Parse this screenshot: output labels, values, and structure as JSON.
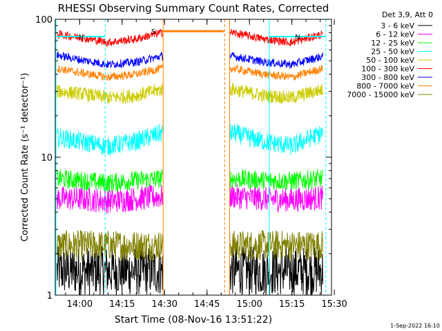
{
  "chart_data": {
    "type": "line",
    "title": "RHESSI Observing Summary Count Rates, Corrected",
    "xlabel": "Start Time (08-Nov-16 13:51:22)",
    "ylabel": "Corrected Count Rate (s⁻¹ detector⁻¹)",
    "y_scale": "log",
    "ylim": [
      1,
      100
    ],
    "xlim": [
      "13:51:22",
      "15:29:00"
    ],
    "x_ticks": [
      "14:00",
      "14:15",
      "14:30",
      "14:45",
      "15:00",
      "15:15",
      "15:30"
    ],
    "y_ticks": [
      "1",
      "10",
      "100"
    ],
    "legend_header": "Det 3,9, Att 0",
    "legend_position": "top-right",
    "data_gap": [
      "14:29:30",
      "14:53:00"
    ],
    "series": [
      {
        "name": "3 - 6 keV",
        "color": "#000000",
        "x": [
          "13:52",
          "14:00",
          "14:10",
          "14:20",
          "14:29",
          "14:54",
          "15:05",
          "15:15",
          "15:26"
        ],
        "values": [
          1.5,
          1.5,
          1.5,
          1.5,
          1.5,
          1.5,
          1.5,
          1.5,
          1.5
        ]
      },
      {
        "name": "6 - 12 keV",
        "color": "#ff00ff",
        "x": [
          "13:52",
          "14:00",
          "14:10",
          "14:20",
          "14:29",
          "14:54",
          "15:05",
          "15:15",
          "15:26"
        ],
        "values": [
          5.0,
          5.0,
          4.8,
          5.0,
          5.2,
          5.2,
          5.0,
          4.9,
          5.1
        ]
      },
      {
        "name": "12 - 25 keV",
        "color": "#00ff00",
        "x": [
          "13:52",
          "14:00",
          "14:10",
          "14:20",
          "14:29",
          "14:54",
          "15:05",
          "15:15",
          "15:26"
        ],
        "values": [
          7.0,
          6.8,
          6.5,
          6.8,
          7.0,
          7.0,
          6.8,
          6.7,
          7.0
        ]
      },
      {
        "name": "25 - 50 keV",
        "color": "#00ffff",
        "x": [
          "13:52",
          "14:00",
          "14:10",
          "14:20",
          "14:29",
          "14:54",
          "15:05",
          "15:15",
          "15:26"
        ],
        "values": [
          14,
          13,
          12,
          13,
          15,
          15,
          13,
          12,
          15
        ]
      },
      {
        "name": "50 - 100 keV",
        "color": "#cccc00",
        "x": [
          "13:52",
          "14:00",
          "14:10",
          "14:20",
          "14:29",
          "14:54",
          "15:05",
          "15:15",
          "15:26"
        ],
        "values": [
          30,
          29,
          27,
          28,
          31,
          31,
          28,
          27,
          31
        ]
      },
      {
        "name": "100 - 300 keV",
        "color": "#ff0000",
        "x": [
          "13:52",
          "14:00",
          "14:10",
          "14:20",
          "14:29",
          "14:54",
          "15:05",
          "15:15",
          "15:26"
        ],
        "values": [
          78,
          74,
          68,
          72,
          80,
          80,
          72,
          68,
          78
        ]
      },
      {
        "name": "300 - 800 keV",
        "color": "#0000ff",
        "x": [
          "13:52",
          "14:00",
          "14:10",
          "14:20",
          "14:29",
          "14:54",
          "15:05",
          "15:15",
          "15:26"
        ],
        "values": [
          55,
          51,
          47,
          49,
          54,
          54,
          49,
          47,
          54
        ]
      },
      {
        "name": "800 - 7000 keV",
        "color": "#ff8000",
        "x": [
          "13:52",
          "14:00",
          "14:10",
          "14:20",
          "14:29",
          "14:54",
          "15:05",
          "15:15",
          "15:26"
        ],
        "values": [
          44,
          41,
          38,
          40,
          44,
          44,
          40,
          38,
          44
        ]
      },
      {
        "name": "7000 - 15000 keV",
        "color": "#808000",
        "x": [
          "13:52",
          "14:00",
          "14:10",
          "14:20",
          "14:29",
          "14:54",
          "15:05",
          "15:15",
          "15:26"
        ],
        "values": [
          2.3,
          2.3,
          2.3,
          2.3,
          2.3,
          2.3,
          2.3,
          2.3,
          2.3
        ]
      }
    ],
    "flags": [
      {
        "label": "N",
        "color": "#00ffff",
        "x": [
          "13:52",
          "14:09"
        ],
        "value": 75
      },
      {
        "label": "N",
        "color": "#00ffff",
        "x": [
          "15:07",
          "15:27"
        ],
        "value": 75
      },
      {
        "label": "S",
        "color": "#ff8000",
        "x": [
          "14:29",
          "14:51"
        ],
        "value": 82
      }
    ]
  },
  "footer_date": "1-Sep-2022 16:10"
}
